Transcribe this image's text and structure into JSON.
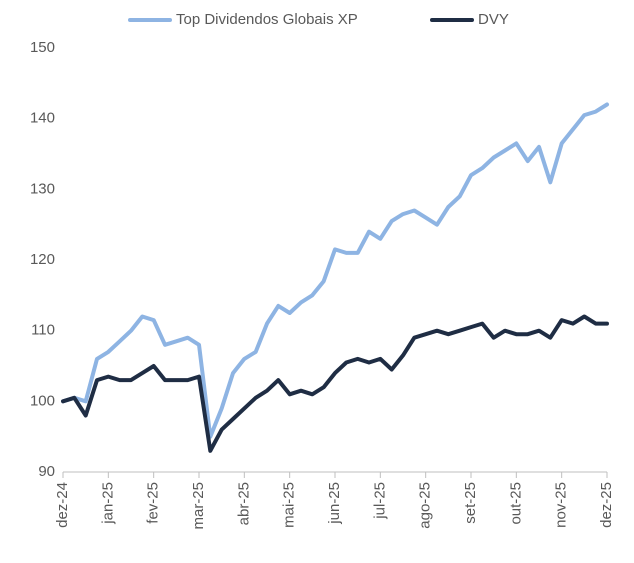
{
  "chart_data": {
    "type": "line",
    "categories": [
      "dez-24",
      null,
      null,
      null,
      "jan-25",
      null,
      null,
      null,
      "fev-25",
      null,
      null,
      null,
      "mar-25",
      null,
      null,
      null,
      "abr-25",
      null,
      null,
      null,
      "mai-25",
      null,
      null,
      null,
      "jun-25",
      null,
      null,
      null,
      "jul-25",
      null,
      null,
      null,
      "ago-25",
      null,
      null,
      null,
      "set-25",
      null,
      null,
      null,
      "out-25",
      null,
      null,
      null,
      "nov-25",
      null,
      null,
      null,
      "dez-25"
    ],
    "series": [
      {
        "name": "Top Dividendos Globais XP",
        "color": "#8eb4e3",
        "values": [
          100,
          100.5,
          100,
          106,
          107,
          108.5,
          110,
          112,
          111.5,
          108,
          108.5,
          109,
          108,
          95,
          99,
          104,
          106,
          107,
          111,
          113.5,
          112.5,
          114,
          115,
          117,
          121.5,
          121,
          121,
          124,
          123,
          125.5,
          126.5,
          127,
          126,
          125,
          127.5,
          129,
          132,
          133,
          134.5,
          135.5,
          136.5,
          134,
          136,
          131,
          136.5,
          138.5,
          140.5,
          141,
          142
        ]
      },
      {
        "name": "DVY",
        "color": "#1f2d44",
        "values": [
          100,
          100.5,
          98,
          103,
          103.5,
          103,
          103,
          104,
          105,
          103,
          103,
          103,
          103.5,
          93,
          96,
          97.5,
          99,
          100.5,
          101.5,
          103,
          101,
          101.5,
          101,
          102,
          104,
          105.5,
          106,
          105.5,
          106,
          104.5,
          106.5,
          109,
          109.5,
          110,
          109.5,
          110,
          110.5,
          111,
          109,
          110,
          109.5,
          109.5,
          110,
          109,
          111.5,
          111,
          112,
          111,
          111
        ]
      }
    ],
    "ylim": [
      90,
      150
    ],
    "yticks": [
      90,
      100,
      110,
      120,
      130,
      140,
      150
    ],
    "grid": false
  }
}
